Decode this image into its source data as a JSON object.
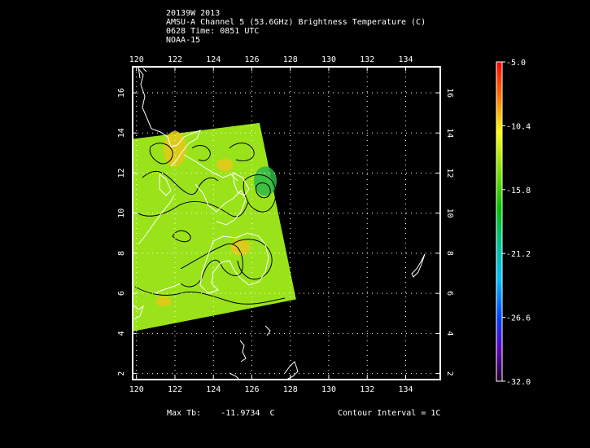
{
  "header": {
    "line1": "20139W 2013",
    "line2": "AMSU-A Channel 5 (53.6GHz) Brightness Temperature (C)",
    "line3": "0628 Time: 0851 UTC",
    "line4": "NOAA-15"
  },
  "map": {
    "lon_ticks": [
      "120",
      "122",
      "124",
      "126",
      "128",
      "130",
      "132",
      "134"
    ],
    "lat_ticks": [
      "2",
      "4",
      "6",
      "8",
      "10",
      "12",
      "14",
      "16"
    ],
    "lon_range": [
      119.8,
      135.8
    ],
    "lat_range": [
      1.7,
      17.3
    ],
    "grid": true,
    "swath_corners_lonlat": [
      [
        119.8,
        13.7
      ],
      [
        126.4,
        14.5
      ],
      [
        128.3,
        5.7
      ],
      [
        119.8,
        4.1
      ]
    ],
    "field_color_dominant": "#9ae31a",
    "field_color_warm": "#e6c81a",
    "field_color_cold": "#2fb84a",
    "coastline_color": "#ffffff",
    "contour_color": "#000000"
  },
  "colorbar": {
    "labels": [
      "-5.0",
      "-10.4",
      "-15.8",
      "-21.2",
      "-26.6",
      "-32.0"
    ],
    "min": -32.0,
    "max": -5.0
  },
  "footer": {
    "max_tb_label": "Max Tb:",
    "max_tb_value": "-11.9734",
    "max_tb_unit": "C",
    "contour_label": "Contour Interval = 1C"
  }
}
